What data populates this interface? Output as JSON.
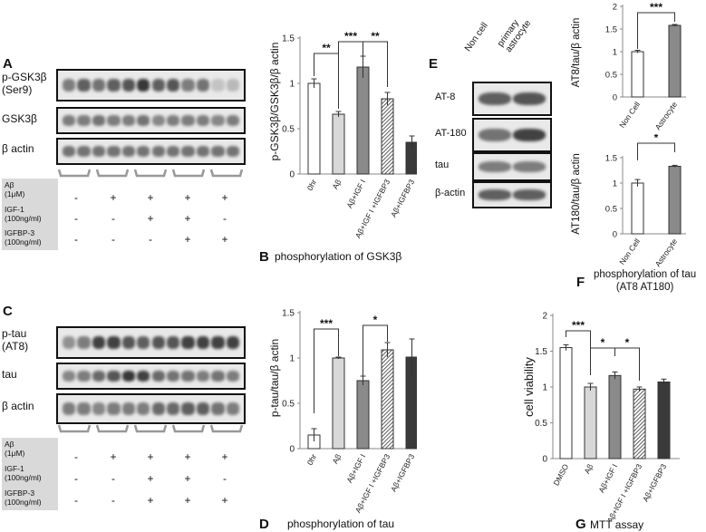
{
  "panelA": {
    "letter": "A",
    "blots": [
      {
        "label": "p-GSK3β\n(Ser9)",
        "bands": [
          0.55,
          0.7,
          0.6,
          0.7,
          0.75,
          0.9,
          0.7,
          0.75,
          0.55,
          0.6,
          0.2,
          0.25
        ]
      },
      {
        "label": "GSK3β",
        "bands": [
          0.55,
          0.55,
          0.6,
          0.55,
          0.55,
          0.6,
          0.5,
          0.55,
          0.55,
          0.55,
          0.5,
          0.55
        ]
      },
      {
        "label": "β actin",
        "bands": [
          0.6,
          0.6,
          0.6,
          0.6,
          0.6,
          0.6,
          0.6,
          0.6,
          0.6,
          0.6,
          0.6,
          0.6
        ]
      }
    ],
    "treatments": [
      {
        "label": "Aβ\n(1μM)",
        "signs": [
          "-",
          "+",
          "+",
          "+",
          "+"
        ]
      },
      {
        "label": "IGF-1\n(100ng/ml)",
        "signs": [
          "-",
          "-",
          "+",
          "+",
          "-"
        ]
      },
      {
        "label": "IGFBP-3\n(100ng/ml)",
        "signs": [
          "-",
          "-",
          "-",
          "+",
          "+"
        ]
      }
    ]
  },
  "panelB": {
    "letter": "B",
    "caption": "phosphorylation of GSK3β",
    "ylabel": "p-GSK3β/GSK3β/β actin",
    "sig": [
      "**",
      "***",
      "**"
    ]
  },
  "panelC": {
    "letter": "C",
    "blots": [
      {
        "label": "p-tau\n(AT8)",
        "bands": [
          0.45,
          0.55,
          0.85,
          0.85,
          0.75,
          0.7,
          0.75,
          0.75,
          0.85,
          0.85,
          0.85,
          0.85
        ]
      },
      {
        "label": "tau",
        "bands": [
          0.5,
          0.55,
          0.65,
          0.75,
          0.9,
          0.85,
          0.65,
          0.6,
          0.6,
          0.55,
          0.6,
          0.55
        ]
      },
      {
        "label": "β actin",
        "bands": [
          0.55,
          0.55,
          0.5,
          0.55,
          0.55,
          0.55,
          0.65,
          0.65,
          0.7,
          0.7,
          0.6,
          0.55
        ]
      }
    ],
    "treatments": [
      {
        "label": "Aβ\n(1μM)",
        "signs": [
          "-",
          "+",
          "+",
          "+",
          "+"
        ]
      },
      {
        "label": "IGF-1\n(100ng/ml)",
        "signs": [
          "-",
          "-",
          "+",
          "+",
          "-"
        ]
      },
      {
        "label": "IGFBP-3\n(100ng/ml)",
        "signs": [
          "-",
          "-",
          "+",
          "+",
          "+"
        ]
      }
    ]
  },
  "panelD": {
    "letter": "D",
    "caption": "phosphorylation of tau",
    "ylabel": "p-tau/tau/β actin",
    "sig": [
      "***",
      "*"
    ]
  },
  "panelE": {
    "letter": "E",
    "columns": [
      "Non cell",
      "primary\nastrocyte"
    ],
    "blots": [
      {
        "label": "AT-8",
        "bands": [
          0.7,
          0.75
        ]
      },
      {
        "label": "AT-180",
        "bands": [
          0.6,
          0.85
        ]
      },
      {
        "label": "tau",
        "bands": [
          0.55,
          0.55
        ]
      },
      {
        "label": "β-actin",
        "bands": [
          0.7,
          0.7
        ]
      }
    ]
  },
  "panelF": {
    "letter": "F",
    "caption": "phosphorylation of tau\n(AT8  AT180)",
    "top_ylabel": "AT8/tau/β actin",
    "bottom_ylabel": "AT180/tau/β actin",
    "sig_top": "***",
    "sig_bottom": "*"
  },
  "panelG": {
    "letter": "G",
    "caption": "MTT assay",
    "ylabel": "cell viability",
    "sig": [
      "***",
      "*",
      "*"
    ]
  },
  "chart_data": [
    {
      "id": "B",
      "type": "bar",
      "categories": [
        "0hr",
        "Aβ",
        "Aβ+IGF I",
        "Aβ+IGF I +IGFBP3",
        "Aβ+IGFBP3"
      ],
      "values": [
        1.0,
        0.66,
        1.18,
        0.83,
        0.35
      ],
      "errors": [
        0.05,
        0.03,
        0.12,
        0.07,
        0.07
      ],
      "fills": [
        "white",
        "light",
        "mid",
        "hatch",
        "dark"
      ],
      "ylabel": "p-GSK3β/GSK3β/β actin",
      "ylim": [
        0,
        1.5
      ],
      "yticks": [
        0,
        0.5,
        1,
        1.5
      ],
      "ytick_labels": [
        "0",
        "0.5",
        "1",
        "1.5"
      ]
    },
    {
      "id": "D",
      "type": "bar",
      "categories": [
        "0hr",
        "Aβ",
        "Aβ+IGF I",
        "Aβ+IGF I +IGFBP3",
        "Aβ+IGFBP3"
      ],
      "values": [
        0.15,
        1.0,
        0.75,
        1.09,
        1.01
      ],
      "errors": [
        0.07,
        0.01,
        0.05,
        0.08,
        0.2
      ],
      "fills": [
        "white",
        "light",
        "mid",
        "hatch",
        "dark"
      ],
      "ylabel": "p-tau/tau/β actin",
      "ylim": [
        0,
        1.5
      ],
      "yticks": [
        0,
        0.5,
        1,
        1.5
      ],
      "ytick_labels": [
        "0",
        "0.5",
        "1",
        "1.5"
      ]
    },
    {
      "id": "F-top",
      "type": "bar",
      "categories": [
        "Non Cell",
        "Astrocyte"
      ],
      "values": [
        1.0,
        1.58
      ],
      "errors": [
        0.03,
        0.02
      ],
      "fills": [
        "white",
        "mid"
      ],
      "ylabel": "AT8/tau/β actin",
      "ylim": [
        0,
        2
      ],
      "yticks": [
        0,
        0.5,
        1,
        1.5,
        2
      ],
      "ytick_labels": [
        "0",
        "0.5",
        "1",
        "1.5",
        "2"
      ]
    },
    {
      "id": "F-bottom",
      "type": "bar",
      "categories": [
        "Non Cell",
        "Astrocyte"
      ],
      "values": [
        1.0,
        1.33
      ],
      "errors": [
        0.07,
        0.02
      ],
      "fills": [
        "white",
        "mid"
      ],
      "ylabel": "AT180/tau/β actin",
      "ylim": [
        0,
        1.5
      ],
      "yticks": [
        0,
        0.5,
        1,
        1.5
      ],
      "ytick_labels": [
        "0",
        "0.5",
        "1",
        "1.5"
      ]
    },
    {
      "id": "G",
      "type": "bar",
      "categories": [
        "DMSO",
        "Aβ",
        "Aβ+IGF I",
        "Aβ+IGF I +IGFBP3",
        "Aβ+IGFBP3"
      ],
      "values": [
        1.55,
        1.0,
        1.16,
        0.97,
        1.07
      ],
      "errors": [
        0.04,
        0.05,
        0.05,
        0.03,
        0.04
      ],
      "fills": [
        "white",
        "light",
        "mid",
        "hatch",
        "dark"
      ],
      "ylabel": "cell viability",
      "ylim": [
        0,
        2
      ],
      "yticks": [
        0,
        0.5,
        1,
        1.5,
        2
      ],
      "ytick_labels": [
        "0",
        "0.5",
        "1",
        "1.5",
        "2"
      ]
    }
  ]
}
